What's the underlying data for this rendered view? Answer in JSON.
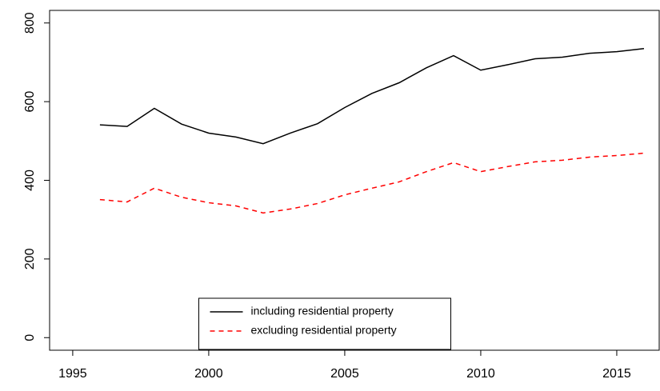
{
  "chart_data": {
    "type": "line",
    "x": [
      1996,
      1997,
      1998,
      1999,
      2000,
      2001,
      2002,
      2003,
      2004,
      2005,
      2006,
      2007,
      2008,
      2009,
      2010,
      2011,
      2012,
      2013,
      2014,
      2015,
      2016
    ],
    "series": [
      {
        "name": "including residential property",
        "color": "#000000",
        "linestyle": "solid",
        "values": [
          541,
          537,
          583,
          543,
          520,
          510,
          493,
          520,
          544,
          585,
          621,
          648,
          686,
          717,
          680,
          694,
          709,
          713,
          723,
          727,
          735
        ]
      },
      {
        "name": "excluding residential property",
        "color": "#ff0000",
        "linestyle": "dashed",
        "values": [
          351,
          345,
          380,
          357,
          343,
          335,
          317,
          327,
          341,
          363,
          380,
          396,
          422,
          445,
          422,
          435,
          447,
          451,
          459,
          463,
          469
        ]
      }
    ],
    "xlim": [
      1994.15,
      2016.56
    ],
    "xticks": [
      1995,
      2000,
      2005,
      2010,
      2015
    ],
    "ylim": [
      -32,
      832
    ],
    "yticks": [
      0,
      200,
      400,
      600,
      800
    ],
    "legend": "bottom"
  }
}
